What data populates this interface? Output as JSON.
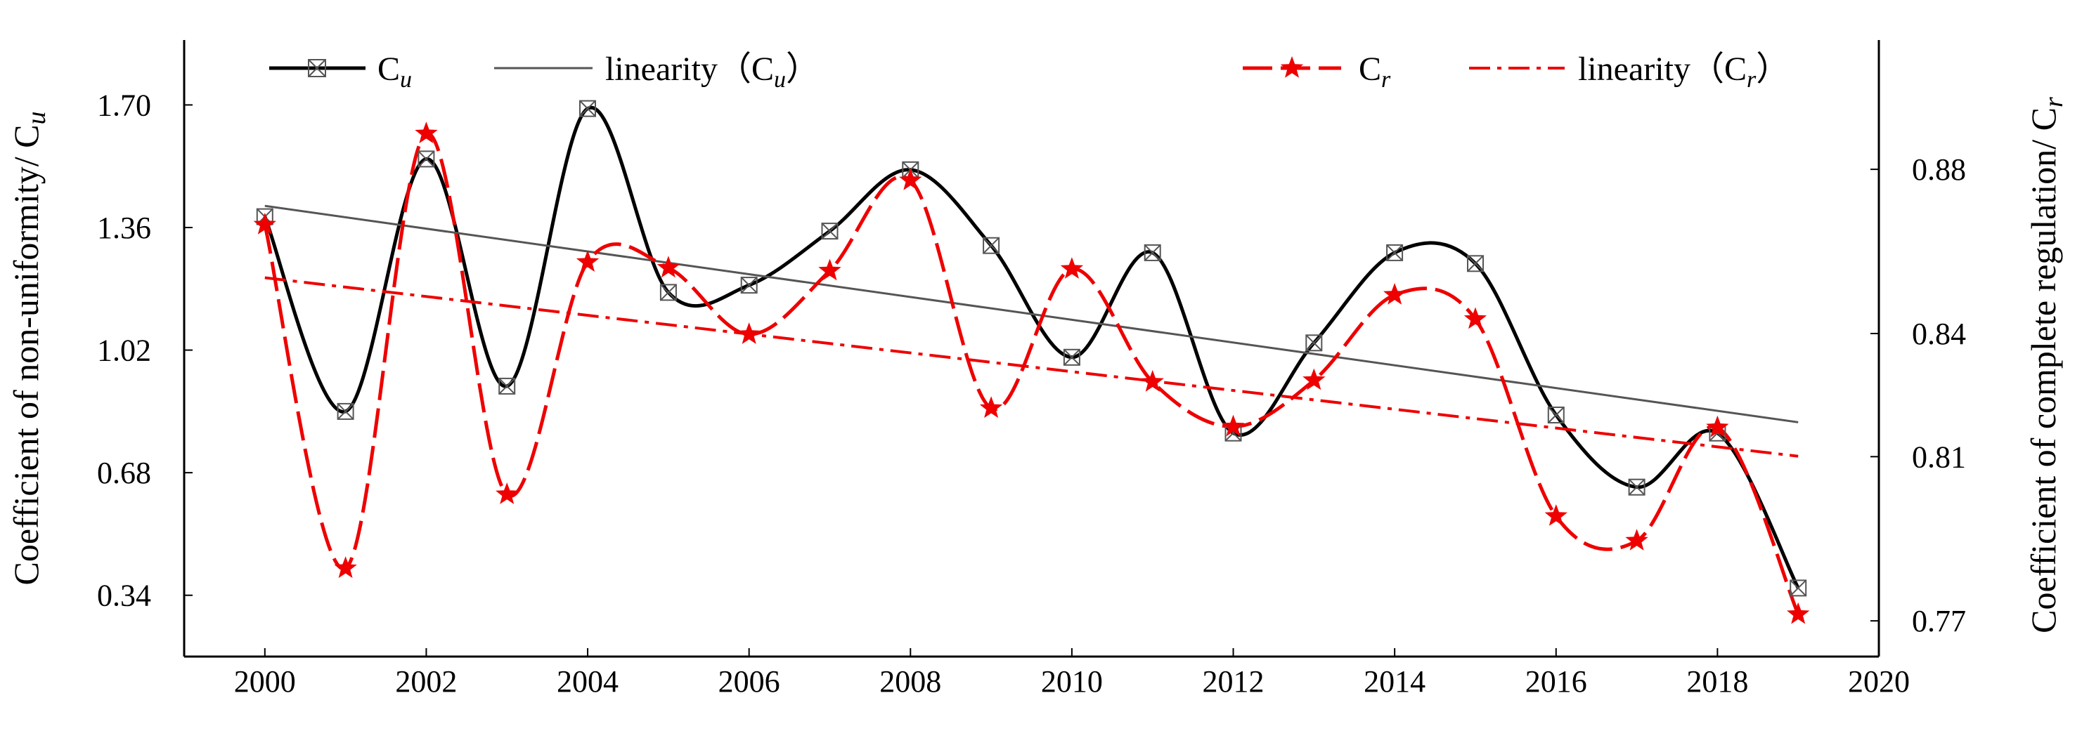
{
  "chart_data": {
    "type": "line",
    "x_axis": {
      "range": [
        1999,
        2020
      ],
      "ticks": [
        2000,
        2002,
        2004,
        2006,
        2008,
        2010,
        2012,
        2014,
        2016,
        2018,
        2020
      ]
    },
    "y_left": {
      "label": "Coefficient of non-uniformity/ C",
      "label_sub": "u",
      "range": [
        0.17,
        1.88
      ],
      "ticks": [
        "0.34",
        "0.68",
        "1.02",
        "1.36",
        "1.70"
      ]
    },
    "y_right": {
      "label": "Coefficient of complete regulation/ C",
      "label_sub": "r",
      "range": [
        0.7613,
        0.9115
      ],
      "ticks": [
        "0.77",
        "0.81",
        "0.84",
        "0.88"
      ]
    },
    "legend": {
      "cu": {
        "main": "C",
        "sub": "u"
      },
      "lin_cu": {
        "main": "linearity（C",
        "sub": "u",
        "close": "）"
      },
      "cr": {
        "main": "C",
        "sub": "r"
      },
      "lin_cr": {
        "main": "linearity（C",
        "sub": "r",
        "close": "）"
      }
    },
    "series": [
      {
        "name": "Cu",
        "axis": "left",
        "color": "#000000",
        "marker": "x-square",
        "x": [
          2000,
          2001,
          2002,
          2003,
          2004,
          2005,
          2006,
          2007,
          2008,
          2009,
          2010,
          2011,
          2012,
          2013,
          2014,
          2015,
          2016,
          2017,
          2018,
          2019
        ],
        "y": [
          1.39,
          0.85,
          1.55,
          0.92,
          1.69,
          1.18,
          1.2,
          1.35,
          1.52,
          1.31,
          1.0,
          1.29,
          0.79,
          1.04,
          1.29,
          1.26,
          0.84,
          0.64,
          0.79,
          0.36
        ]
      },
      {
        "name": "linearity (Cu)",
        "axis": "left",
        "color": "#555555",
        "kind": "linear-fit",
        "x": [
          2000,
          2019
        ],
        "y": [
          1.42,
          0.82
        ]
      },
      {
        "name": "Cr",
        "axis": "right",
        "color": "#ee0000",
        "marker": "star",
        "x": [
          2000,
          2001,
          2002,
          2003,
          2004,
          2005,
          2006,
          2007,
          2008,
          2009,
          2010,
          2011,
          2012,
          2013,
          2014,
          2015,
          2016,
          2017,
          2018,
          2019
        ],
        "y": [
          0.8665,
          0.7828,
          0.8887,
          0.8008,
          0.8574,
          0.856,
          0.8398,
          0.8553,
          0.8773,
          0.8218,
          0.8557,
          0.8282,
          0.8173,
          0.8286,
          0.8494,
          0.8435,
          0.7955,
          0.7895,
          0.8171,
          0.7716
        ]
      },
      {
        "name": "linearity (Cr)",
        "axis": "right",
        "color": "#ee0000",
        "kind": "linear-fit",
        "x": [
          2000,
          2019
        ],
        "y": [
          0.8536,
          0.8101
        ]
      }
    ]
  }
}
